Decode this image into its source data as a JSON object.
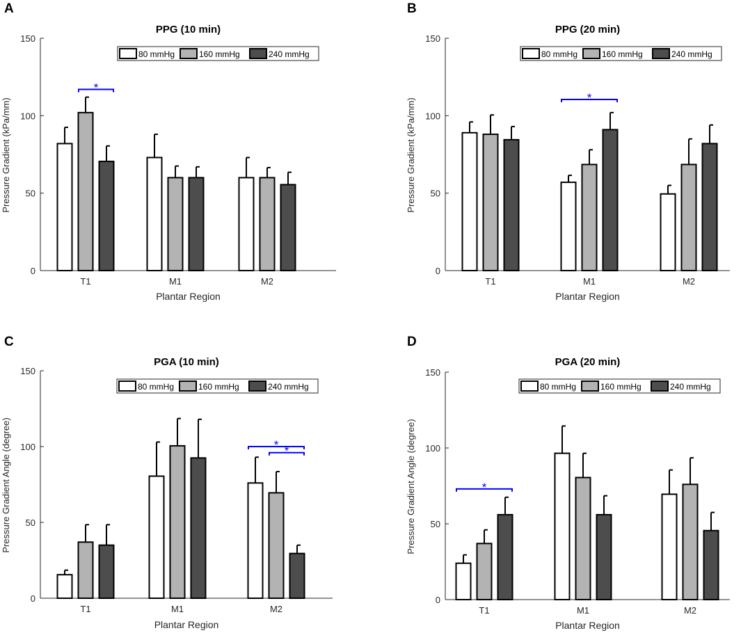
{
  "colors": {
    "bar_80": "#ffffff",
    "bar_160": "#b3b3b3",
    "bar_240": "#4d4d4d",
    "edge": "#000000",
    "sig": "#0000ff",
    "axis": "#262626"
  },
  "chart_data": [
    {
      "panel_label": "A",
      "type": "bar",
      "title": "PPG (10 min)",
      "xlabel": "Plantar Region",
      "ylabel": "Pressure Gradient (kPa/mm)",
      "ylim": [
        0,
        150
      ],
      "yticks": [
        "0",
        "50",
        "100",
        "150"
      ],
      "categories": [
        "T1",
        "M1",
        "M2"
      ],
      "series": [
        {
          "name": "80 mmHg",
          "values": [
            82,
            73,
            60
          ],
          "errors": [
            10.5,
            15,
            13
          ]
        },
        {
          "name": "160 mmHg",
          "values": [
            102,
            60,
            60
          ],
          "errors": [
            10,
            7.5,
            6.5
          ]
        },
        {
          "name": "240 mmHg",
          "values": [
            70.5,
            60,
            55.5
          ],
          "errors": [
            10,
            7,
            8
          ]
        }
      ],
      "significance": [
        {
          "group": 0,
          "from": 1,
          "to": 2,
          "y": 117,
          "label": "*"
        }
      ]
    },
    {
      "panel_label": "B",
      "type": "bar",
      "title": "PPG (20 min)",
      "xlabel": "Plantar Region",
      "ylabel": "Pressure Gradient (kPa/mm)",
      "ylim": [
        0,
        150
      ],
      "yticks": [
        "0",
        "50",
        "100",
        "150"
      ],
      "categories": [
        "T1",
        "M1",
        "M2"
      ],
      "series": [
        {
          "name": "80 mmHg",
          "values": [
            89,
            57,
            49.5
          ],
          "errors": [
            7,
            4.5,
            5.5
          ]
        },
        {
          "name": "160 mmHg",
          "values": [
            88,
            68.5,
            68.5
          ],
          "errors": [
            12.5,
            9.5,
            16.5
          ]
        },
        {
          "name": "240 mmHg",
          "values": [
            84.5,
            91,
            82
          ],
          "errors": [
            8.5,
            11,
            12
          ]
        }
      ],
      "significance": [
        {
          "group": 1,
          "from": 0,
          "to": 2,
          "y": 110.5,
          "label": "*"
        }
      ]
    },
    {
      "panel_label": "C",
      "type": "bar",
      "title": "PGA (10 min)",
      "xlabel": "Plantar Region",
      "ylabel": "Pressure Gradient Angle (degree)",
      "ylim": [
        0,
        150
      ],
      "yticks": [
        "0",
        "50",
        "100",
        "150"
      ],
      "categories": [
        "T1",
        "M1",
        "M2"
      ],
      "series": [
        {
          "name": "80 mmHg",
          "values": [
            15.5,
            80.5,
            76
          ],
          "errors": [
            3,
            22.5,
            17
          ]
        },
        {
          "name": "160 mmHg",
          "values": [
            37,
            100.5,
            69.5
          ],
          "errors": [
            11.5,
            18,
            14
          ]
        },
        {
          "name": "240 mmHg",
          "values": [
            35,
            92.5,
            29.5
          ],
          "errors": [
            13.5,
            25.5,
            5.5
          ]
        }
      ],
      "significance": [
        {
          "group": 2,
          "from": 0,
          "to": 2,
          "y": 100,
          "label": "*"
        },
        {
          "group": 2,
          "from": 1,
          "to": 2,
          "y": 96,
          "label": "*"
        }
      ]
    },
    {
      "panel_label": "D",
      "type": "bar",
      "title": "PGA (20 min)",
      "xlabel": "Plantar Region",
      "ylabel": "Pressure Gradient Angle (degree)",
      "ylim": [
        0,
        150
      ],
      "yticks": [
        "0",
        "50",
        "100",
        "150"
      ],
      "categories": [
        "T1",
        "M1",
        "M2"
      ],
      "series": [
        {
          "name": "80 mmHg",
          "values": [
            24,
            96.5,
            69.5
          ],
          "errors": [
            5.5,
            18,
            16
          ]
        },
        {
          "name": "160 mmHg",
          "values": [
            37,
            80.5,
            76
          ],
          "errors": [
            9,
            16,
            17.5
          ]
        },
        {
          "name": "240 mmHg",
          "values": [
            56,
            56,
            45.5
          ],
          "errors": [
            11.5,
            12.5,
            12
          ]
        }
      ],
      "significance": [
        {
          "group": 0,
          "from": 0,
          "to": 2,
          "y": 73,
          "label": "*"
        }
      ]
    }
  ]
}
